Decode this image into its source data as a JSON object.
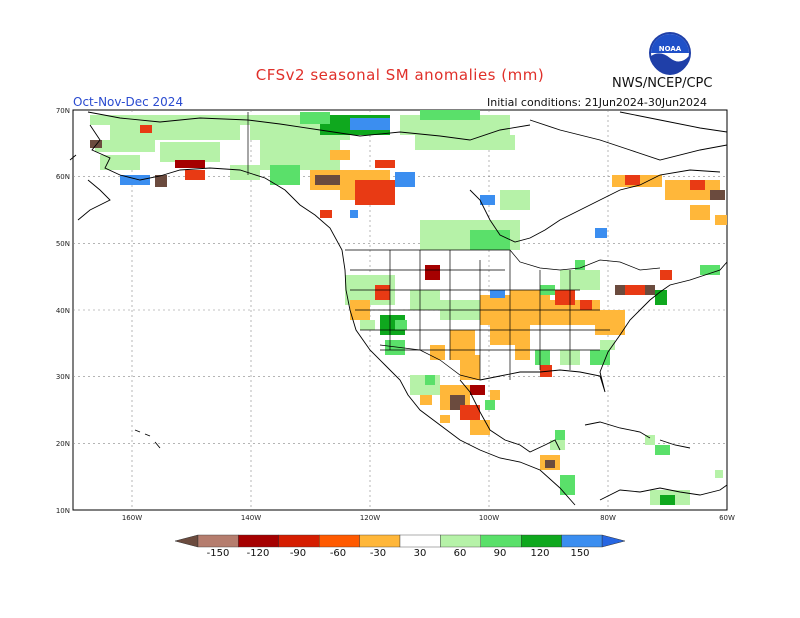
{
  "header": {
    "title": "CFSv2 seasonal SM anomalies (mm)",
    "agency": "NWS/NCEP/CPC",
    "season": "Oct-Nov-Dec 2024",
    "initial_conditions": "Initial conditions: 21Jun2024-30Jun2024",
    "logo_text": "NOAA"
  },
  "map": {
    "lat_labels": [
      "70N",
      "60N",
      "50N",
      "40N",
      "30N",
      "20N",
      "10N"
    ],
    "lon_labels": [
      "160W",
      "140W",
      "120W",
      "100W",
      "80W",
      "60W"
    ]
  },
  "colorbar": {
    "labels": [
      "-150",
      "-120",
      "-90",
      "-60",
      "-30",
      "30",
      "60",
      "90",
      "120",
      "150"
    ],
    "colors": [
      "#6b4b3e",
      "#b57d6e",
      "#a50000",
      "#d51d00",
      "#ff5a00",
      "#ffb73a",
      "#ffffff",
      "#b6f2a8",
      "#5ae06a",
      "#0fa81e",
      "#3b8ef0",
      "#2766e2"
    ]
  },
  "colors": {
    "brown": "#6b4b3e",
    "dark_red": "#a50000",
    "red": "#e83a14",
    "orange": "#ffb73a",
    "light_green": "#b6f2a8",
    "green": "#5ae06a",
    "dark_green": "#0fa81e",
    "blue": "#3b8ef0"
  }
}
